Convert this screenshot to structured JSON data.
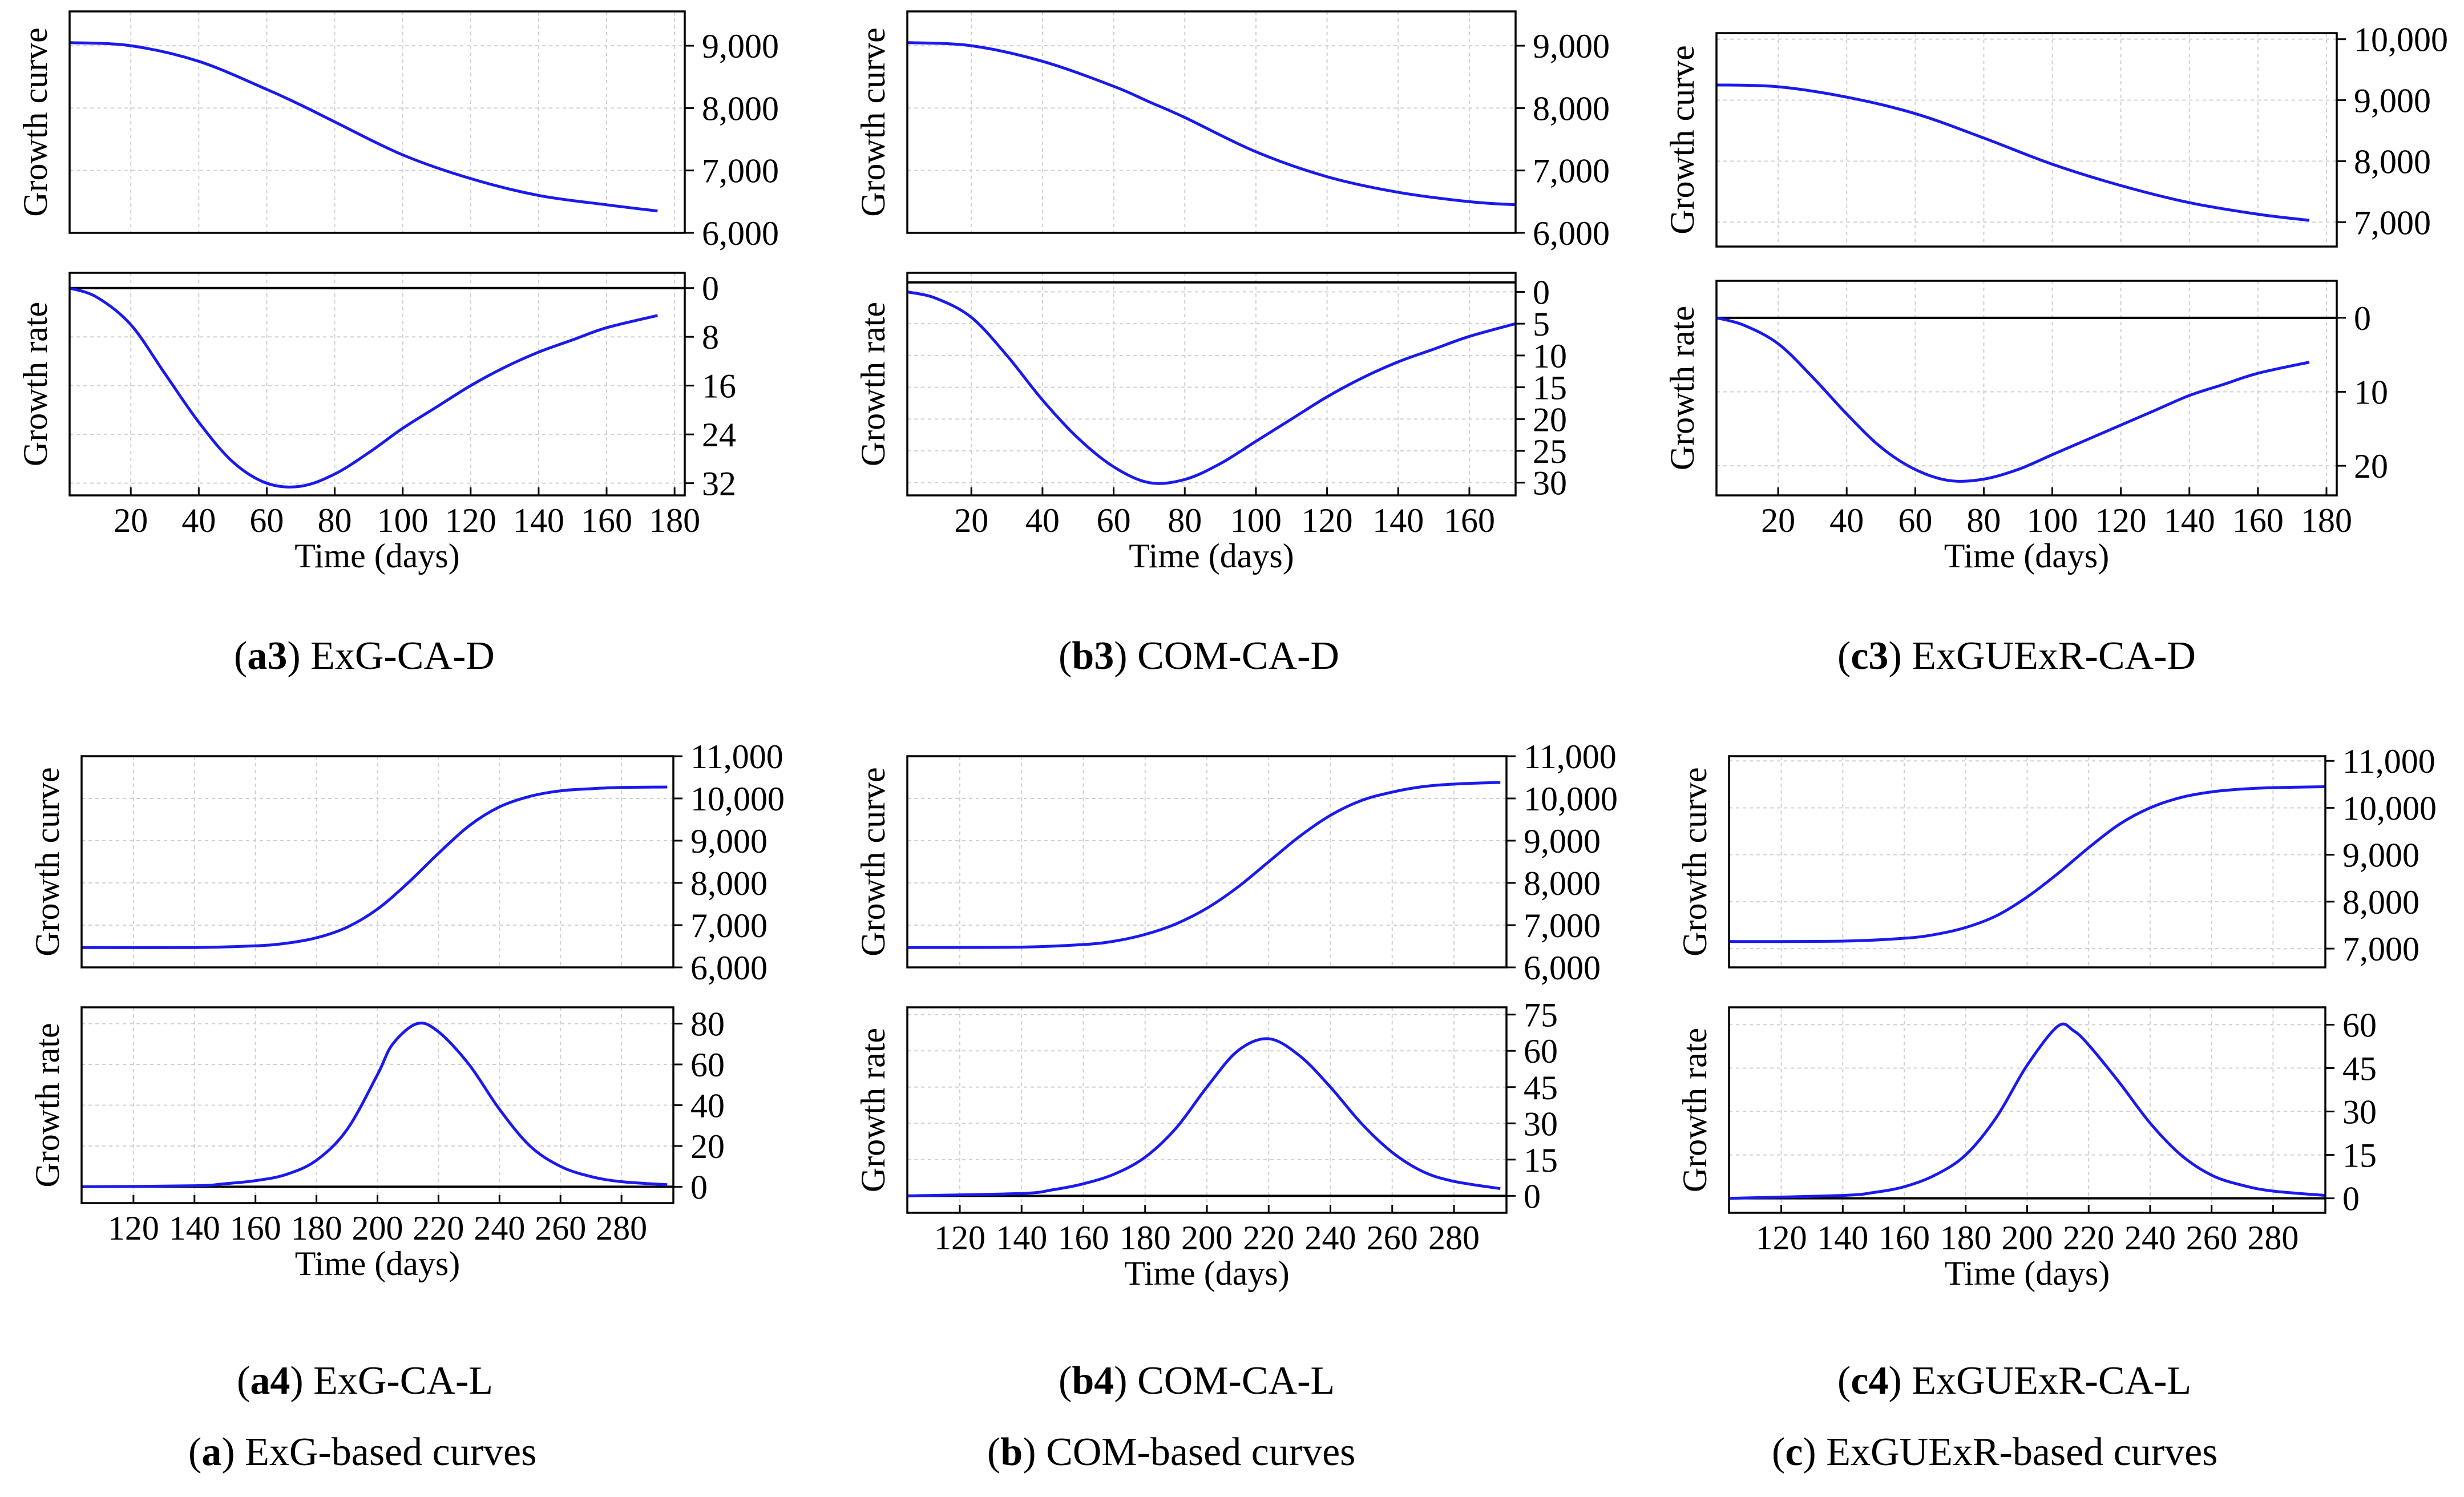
{
  "chart_data": [
    {
      "id": "a3",
      "type": "line",
      "caption_bold": "a3",
      "caption_text": "ExG-CA-D",
      "xlabel": "Time (days)",
      "xlim": [
        2,
        183
      ],
      "xticks": [
        "20",
        "40",
        "60",
        "80",
        "100",
        "120",
        "140",
        "160",
        "180"
      ],
      "curve": {
        "ylabel": "Growth curve",
        "ylim": [
          6000,
          9550
        ],
        "yticks": [
          "6,000",
          "7,000",
          "8,000",
          "9,000"
        ],
        "x": [
          2,
          20,
          40,
          60,
          70,
          80,
          100,
          120,
          140,
          160,
          175
        ],
        "values": [
          9050,
          9000,
          8750,
          8300,
          8050,
          7780,
          7250,
          6870,
          6600,
          6450,
          6350
        ]
      },
      "rate": {
        "ylabel": "Growth rate",
        "ylim": [
          -2.5,
          34
        ],
        "yticks": [
          "0",
          "8",
          "16",
          "24",
          "32"
        ],
        "reversed": true,
        "baseline": 0,
        "x": [
          2,
          10,
          20,
          30,
          40,
          50,
          60,
          70,
          80,
          90,
          100,
          110,
          120,
          130,
          140,
          150,
          160,
          175
        ],
        "values": [
          0,
          1.5,
          6,
          14,
          22,
          28.5,
          32,
          32.5,
          30.5,
          27,
          23,
          19.5,
          16,
          13,
          10.5,
          8.5,
          6.5,
          4.5
        ]
      }
    },
    {
      "id": "b3",
      "type": "line",
      "caption_bold": "b3",
      "caption_text": "COM-CA-D",
      "xlabel": "Time (days)",
      "xlim": [
        2,
        173
      ],
      "xticks": [
        "20",
        "40",
        "60",
        "80",
        "100",
        "120",
        "140",
        "160"
      ],
      "curve": {
        "ylabel": "Growth curve",
        "ylim": [
          6000,
          9550
        ],
        "yticks": [
          "6,000",
          "7,000",
          "8,000",
          "9,000"
        ],
        "x": [
          2,
          20,
          40,
          60,
          70,
          80,
          100,
          120,
          140,
          160,
          173
        ],
        "values": [
          9050,
          9000,
          8750,
          8350,
          8100,
          7850,
          7300,
          6900,
          6650,
          6500,
          6450
        ]
      },
      "rate": {
        "ylabel": "Growth rate",
        "ylim": [
          -3,
          32
        ],
        "yticks": [
          "0",
          "5",
          "10",
          "15",
          "20",
          "25",
          "30"
        ],
        "reversed": true,
        "baseline": -1.5,
        "x": [
          2,
          10,
          20,
          30,
          40,
          50,
          60,
          70,
          80,
          90,
          100,
          110,
          120,
          130,
          140,
          150,
          160,
          173
        ],
        "values": [
          0,
          1,
          4,
          10,
          17,
          23,
          27.5,
          30,
          29.5,
          27,
          23.5,
          20,
          16.5,
          13.5,
          11,
          9,
          7,
          5
        ]
      }
    },
    {
      "id": "c3",
      "type": "line",
      "caption_bold": "c3",
      "caption_text": "ExGUExR-CA-D",
      "xlabel": "Time (days)",
      "xlim": [
        2,
        183
      ],
      "xticks": [
        "20",
        "40",
        "60",
        "80",
        "100",
        "120",
        "140",
        "160",
        "180"
      ],
      "curve": {
        "ylabel": "Growth curve",
        "ylim": [
          6600,
          10100
        ],
        "yticks": [
          "7,000",
          "8,000",
          "9,000",
          "10,000"
        ],
        "x": [
          2,
          20,
          40,
          60,
          80,
          100,
          120,
          140,
          160,
          175
        ],
        "values": [
          9250,
          9220,
          9050,
          8780,
          8380,
          7950,
          7600,
          7320,
          7130,
          7030
        ]
      },
      "rate": {
        "ylabel": "Growth rate",
        "ylim": [
          -5,
          24
        ],
        "yticks": [
          "0",
          "10",
          "20"
        ],
        "reversed": true,
        "baseline": 0,
        "x": [
          2,
          10,
          20,
          30,
          40,
          50,
          60,
          70,
          80,
          90,
          100,
          110,
          120,
          130,
          140,
          150,
          160,
          175
        ],
        "values": [
          0,
          1,
          3.5,
          8,
          13,
          17.5,
          20.5,
          22,
          21.8,
          20.5,
          18.5,
          16.5,
          14.5,
          12.5,
          10.5,
          9,
          7.5,
          6
        ]
      }
    },
    {
      "id": "a4",
      "type": "line",
      "caption_bold": "a4",
      "caption_text": "ExG-CA-L",
      "xlabel": "Time (days)",
      "xlim": [
        103,
        297
      ],
      "xticks": [
        "120",
        "140",
        "160",
        "180",
        "200",
        "220",
        "240",
        "260",
        "280"
      ],
      "curve": {
        "ylabel": "Growth curve",
        "ylim": [
          6000,
          11000
        ],
        "yticks": [
          "6,000",
          "7,000",
          "8,000",
          "9,000",
          "10,000",
          "11,000"
        ],
        "x": [
          103,
          140,
          160,
          170,
          180,
          190,
          200,
          210,
          220,
          230,
          240,
          250,
          260,
          270,
          280,
          295
        ],
        "values": [
          6470,
          6470,
          6510,
          6570,
          6700,
          6950,
          7380,
          8000,
          8700,
          9350,
          9800,
          10050,
          10180,
          10230,
          10260,
          10270
        ]
      },
      "rate": {
        "ylabel": "Growth rate",
        "ylim": [
          -8,
          88
        ],
        "yticks": [
          "0",
          "20",
          "40",
          "60",
          "80"
        ],
        "reversed": false,
        "baseline": 0,
        "x": [
          103,
          140,
          150,
          160,
          170,
          180,
          190,
          200,
          205,
          213,
          220,
          230,
          240,
          250,
          260,
          270,
          280,
          295
        ],
        "values": [
          0,
          0.5,
          1.5,
          3,
          6,
          13,
          28,
          55,
          70,
          80,
          76,
          60,
          38,
          20,
          10,
          5,
          2.5,
          1
        ]
      }
    },
    {
      "id": "b4",
      "type": "line",
      "caption_bold": "b4",
      "caption_text": "COM-CA-L",
      "xlabel": "Time (days)",
      "xlim": [
        103,
        297
      ],
      "xticks": [
        "120",
        "140",
        "160",
        "180",
        "200",
        "220",
        "240",
        "260",
        "280"
      ],
      "curve": {
        "ylabel": "Growth curve",
        "ylim": [
          6000,
          11000
        ],
        "yticks": [
          "6,000",
          "7,000",
          "8,000",
          "9,000",
          "10,000",
          "11,000"
        ],
        "x": [
          103,
          140,
          160,
          170,
          180,
          190,
          200,
          210,
          220,
          230,
          240,
          250,
          260,
          270,
          280,
          295
        ],
        "values": [
          6470,
          6480,
          6540,
          6620,
          6780,
          7030,
          7400,
          7900,
          8500,
          9100,
          9600,
          9950,
          10150,
          10280,
          10340,
          10380
        ]
      },
      "rate": {
        "ylabel": "Growth rate",
        "ylim": [
          -7,
          78
        ],
        "yticks": [
          "0",
          "15",
          "30",
          "45",
          "60",
          "75"
        ],
        "reversed": false,
        "baseline": 0,
        "x": [
          103,
          140,
          150,
          160,
          170,
          180,
          190,
          200,
          210,
          220,
          230,
          240,
          250,
          260,
          270,
          280,
          295
        ],
        "values": [
          0,
          1,
          2.5,
          5,
          9,
          16,
          28,
          45,
          60,
          65,
          58,
          45,
          30,
          18,
          10,
          6,
          3
        ]
      }
    },
    {
      "id": "c4",
      "type": "line",
      "caption_bold": "c4",
      "caption_text": "ExGUExR-CA-L",
      "xlabel": "Time (days)",
      "xlim": [
        103,
        297
      ],
      "xticks": [
        "120",
        "140",
        "160",
        "180",
        "200",
        "220",
        "240",
        "260",
        "280"
      ],
      "curve": {
        "ylabel": "Growth curve",
        "ylim": [
          6600,
          11100
        ],
        "yticks": [
          "7,000",
          "8,000",
          "9,000",
          "10,000",
          "11,000"
        ],
        "x": [
          103,
          140,
          160,
          170,
          180,
          190,
          200,
          210,
          220,
          230,
          240,
          250,
          260,
          270,
          280,
          297
        ],
        "values": [
          7150,
          7160,
          7220,
          7300,
          7450,
          7700,
          8100,
          8600,
          9150,
          9650,
          10000,
          10220,
          10340,
          10400,
          10430,
          10450
        ]
      },
      "rate": {
        "ylabel": "Growth rate",
        "ylim": [
          -5,
          66
        ],
        "yticks": [
          "0",
          "15",
          "30",
          "45",
          "60"
        ],
        "reversed": false,
        "baseline": 0,
        "x": [
          103,
          140,
          150,
          160,
          170,
          180,
          190,
          200,
          210,
          215,
          220,
          230,
          240,
          250,
          260,
          270,
          280,
          297
        ],
        "values": [
          0,
          1,
          2,
          4,
          8,
          15,
          28,
          46,
          59.5,
          58,
          53,
          40,
          26,
          15,
          8,
          4.5,
          2.5,
          1
        ]
      }
    }
  ],
  "group_captions": [
    {
      "bold": "a",
      "text": "ExG-based curves"
    },
    {
      "bold": "b",
      "text": "COM-based curves"
    },
    {
      "bold": "c",
      "text": "ExGUExR-based curves"
    }
  ],
  "colors": {
    "line": "#1a1aee",
    "baseline": "#000000",
    "grid": "#d0d0d0",
    "axes": "#000000"
  }
}
